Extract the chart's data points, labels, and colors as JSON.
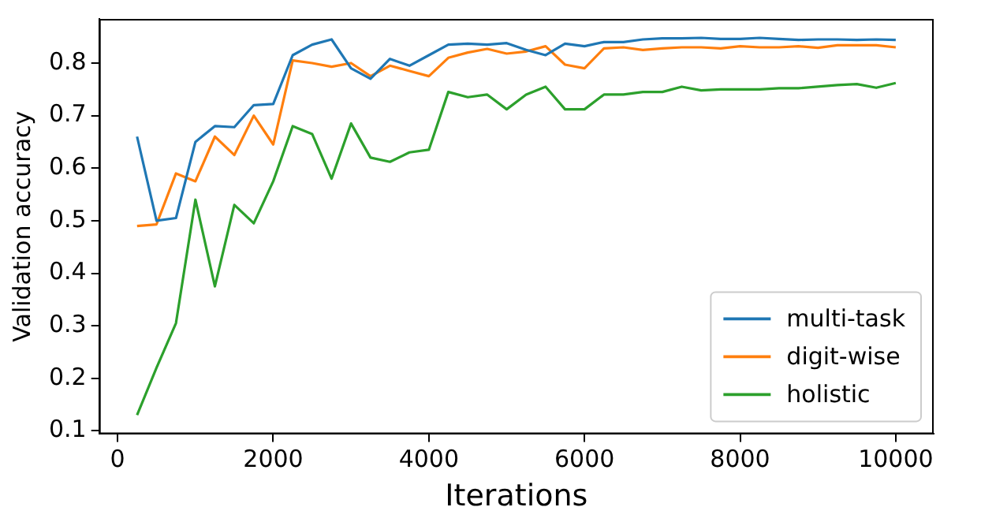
{
  "chart_data": {
    "type": "line",
    "xlabel": "Iterations",
    "ylabel": "Validation accuracy",
    "x": [
      250,
      500,
      750,
      1000,
      1250,
      1500,
      1750,
      2000,
      2250,
      2500,
      2750,
      3000,
      3250,
      3500,
      3750,
      4000,
      4250,
      4500,
      4750,
      5000,
      5250,
      5500,
      5750,
      6000,
      6250,
      6500,
      6750,
      7000,
      7250,
      7500,
      7750,
      8000,
      8250,
      8500,
      8750,
      9000,
      9250,
      9500,
      9750,
      10000
    ],
    "xlim": [
      -237.5,
      10487.5
    ],
    "xticks": [
      0,
      2000,
      4000,
      6000,
      8000,
      10000
    ],
    "ylim": [
      0.094,
      0.884
    ],
    "yticks": [
      0.1,
      0.2,
      0.3,
      0.4,
      0.5,
      0.6,
      0.7,
      0.8
    ],
    "grid": false,
    "legend": "bottom right",
    "marker": "none",
    "line_style": "solid",
    "series": [
      {
        "name": "multi-task",
        "color": "#1f77b4",
        "values": [
          0.66,
          0.5,
          0.505,
          0.65,
          0.68,
          0.678,
          0.72,
          0.722,
          0.815,
          0.835,
          0.845,
          0.79,
          0.77,
          0.808,
          0.795,
          0.815,
          0.835,
          0.837,
          0.835,
          0.838,
          0.825,
          0.815,
          0.837,
          0.832,
          0.84,
          0.84,
          0.845,
          0.847,
          0.847,
          0.848,
          0.846,
          0.846,
          0.848,
          0.846,
          0.844,
          0.845,
          0.845,
          0.844,
          0.845,
          0.844
        ]
      },
      {
        "name": "digit-wise",
        "color": "#ff7f0e",
        "values": [
          0.49,
          0.493,
          0.59,
          0.575,
          0.66,
          0.625,
          0.7,
          0.645,
          0.805,
          0.8,
          0.793,
          0.8,
          0.775,
          0.795,
          0.785,
          0.775,
          0.81,
          0.82,
          0.827,
          0.818,
          0.822,
          0.832,
          0.797,
          0.79,
          0.828,
          0.83,
          0.825,
          0.828,
          0.83,
          0.83,
          0.828,
          0.832,
          0.83,
          0.83,
          0.832,
          0.829,
          0.834,
          0.834,
          0.834,
          0.83
        ]
      },
      {
        "name": "holistic",
        "color": "#2ca02c",
        "values": [
          0.13,
          0.22,
          0.305,
          0.54,
          0.375,
          0.53,
          0.495,
          0.575,
          0.68,
          0.665,
          0.58,
          0.685,
          0.62,
          0.612,
          0.63,
          0.635,
          0.745,
          0.735,
          0.74,
          0.712,
          0.74,
          0.755,
          0.712,
          0.712,
          0.74,
          0.74,
          0.745,
          0.745,
          0.755,
          0.748,
          0.75,
          0.75,
          0.75,
          0.752,
          0.752,
          0.755,
          0.758,
          0.76,
          0.753,
          0.762
        ]
      }
    ]
  }
}
